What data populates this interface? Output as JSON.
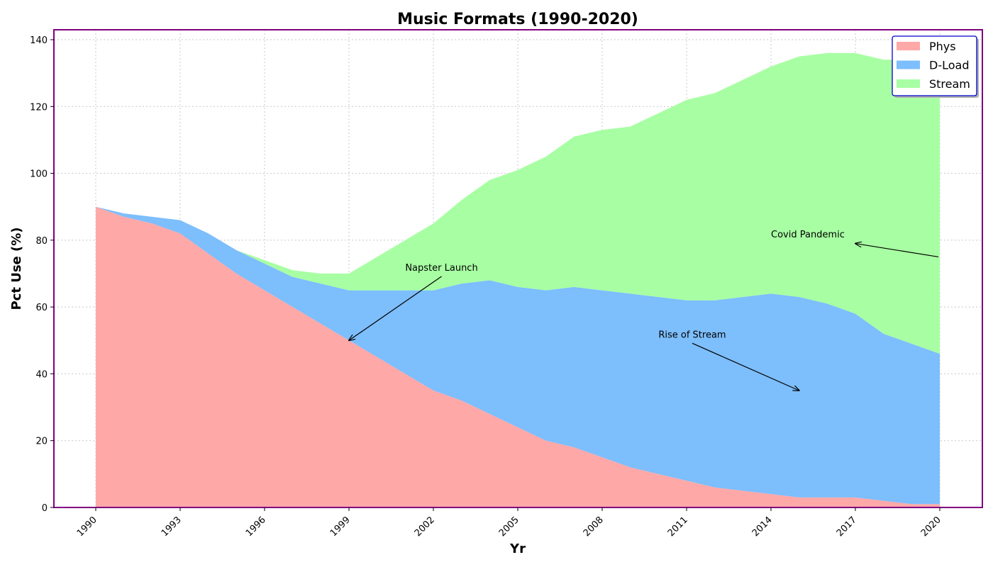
{
  "chart_data": {
    "type": "area",
    "stacked": true,
    "title": "Music Formats (1990-2020)",
    "xlabel": "Yr",
    "ylabel": "Pct Use (%)",
    "xlim": [
      1990,
      2020
    ],
    "ylim": [
      0,
      140
    ],
    "x_ticks": [
      "1990",
      "1993",
      "1996",
      "1999",
      "2002",
      "2005",
      "2008",
      "2011",
      "2014",
      "2017",
      "2020"
    ],
    "y_ticks": [
      "0",
      "20",
      "40",
      "60",
      "80",
      "100",
      "120",
      "140"
    ],
    "grid": true,
    "legend_position": "top-right",
    "x": [
      1990,
      1991,
      1992,
      1993,
      1994,
      1995,
      1996,
      1997,
      1998,
      1999,
      2000,
      2001,
      2002,
      2003,
      2004,
      2005,
      2006,
      2007,
      2008,
      2009,
      2010,
      2011,
      2012,
      2013,
      2014,
      2015,
      2016,
      2017,
      2018,
      2019,
      2020
    ],
    "series": [
      {
        "name": "Phys",
        "color": "#ffa8a8",
        "values": [
          90,
          87,
          85,
          82,
          76,
          70,
          65,
          60,
          55,
          50,
          45,
          40,
          35,
          32,
          28,
          24,
          20,
          18,
          15,
          12,
          10,
          8,
          6,
          5,
          4,
          3,
          3,
          3,
          2,
          1,
          1
        ]
      },
      {
        "name": "D-Load",
        "color": "#7dbefc",
        "values": [
          0,
          1,
          2,
          4,
          6,
          7,
          8,
          9,
          12,
          15,
          20,
          25,
          30,
          35,
          40,
          42,
          45,
          48,
          50,
          52,
          53,
          54,
          56,
          58,
          60,
          60,
          58,
          55,
          50,
          48,
          45
        ]
      },
      {
        "name": "Stream",
        "color": "#a8ffa3",
        "values": [
          0,
          0,
          0,
          0,
          0,
          0,
          1,
          2,
          3,
          5,
          10,
          15,
          20,
          25,
          30,
          35,
          40,
          45,
          48,
          50,
          55,
          60,
          62,
          65,
          68,
          72,
          75,
          78,
          82,
          85,
          90
        ]
      }
    ],
    "annotations": [
      {
        "text": "Napster Launch",
        "text_x": 2001,
        "text_y": 70,
        "arrow_x": 1999,
        "arrow_y": 50
      },
      {
        "text": "Rise of Stream",
        "text_x": 2010,
        "text_y": 50,
        "arrow_x": 2015,
        "arrow_y": 35
      },
      {
        "text": "Covid Pandemic",
        "text_x": 2014,
        "text_y": 80,
        "arrow_x": 2017,
        "arrow_y": 79,
        "arrow_from_x": 2020,
        "arrow_from_y": 75
      }
    ],
    "colors": {
      "frame": "#800080",
      "legend_border": "#0000cc"
    }
  }
}
